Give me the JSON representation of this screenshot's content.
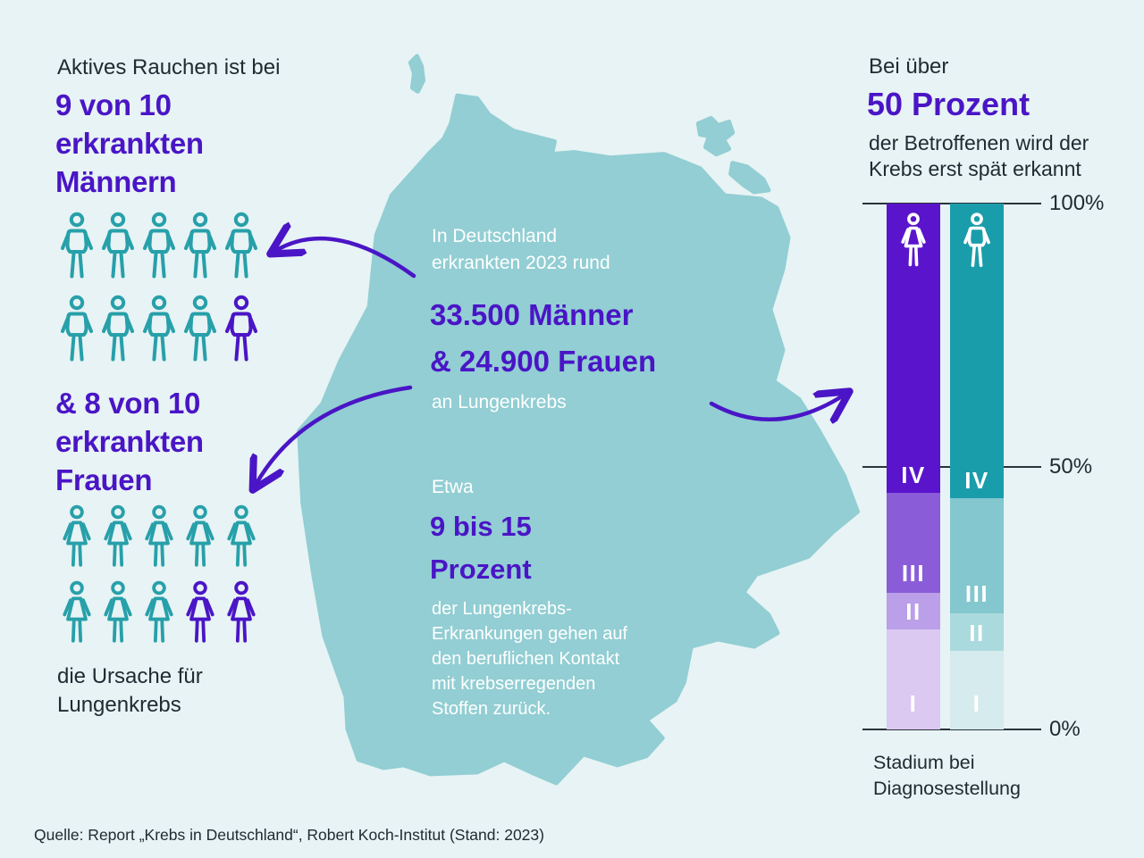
{
  "page": {
    "background": "#e7f3f4",
    "source": "Quelle: Report „Krebs in Deutschland“, Robert Koch-Institut (Stand: 2023)"
  },
  "left": {
    "intro": "Aktives Rauchen ist bei",
    "men_stat_lines": [
      "9 von 10",
      "erkrankten",
      "Männern"
    ],
    "women_stat_lines": [
      "& 8 von 10",
      "erkrankten",
      "Frauen"
    ],
    "caption_lines": [
      "die Ursache für",
      "Lungenkrebs"
    ],
    "men_icons": {
      "total": 10,
      "highlighted": 1,
      "icon": "male"
    },
    "women_icons": {
      "total": 10,
      "highlighted": 2,
      "icon": "female"
    },
    "icon_color": "#27a0aa",
    "highlight_color": "#4a15c6"
  },
  "map": {
    "fill": "#92ced3",
    "block1": {
      "intro_lines": [
        "In Deutschland",
        "erkrankten 2023 rund"
      ],
      "stat_lines": [
        "33.500 Männer",
        "& 24.900 Frauen"
      ],
      "outro": "an Lungenkrebs"
    },
    "block2": {
      "intro": "Etwa",
      "stat_lines": [
        "9 bis 15",
        "Prozent"
      ],
      "body_lines": [
        "der Lungenkrebs-",
        "Erkrankungen gehen auf",
        "den beruflichen Kontakt",
        "mit krebserregenden",
        "Stoffen zurück."
      ]
    }
  },
  "right": {
    "intro": "Bei über",
    "stat": "50 Prozent",
    "body_lines": [
      "der Betroffenen wird der",
      "Krebs erst spät erkannt"
    ],
    "axis_caption_lines": [
      "Stadium bei",
      "Diagnosestellung"
    ]
  },
  "chart_data": {
    "type": "bar",
    "variant": "stacked-100-percent",
    "title": "Stadium bei Diagnosestellung",
    "unit": "percent",
    "ylim": [
      0,
      100
    ],
    "yticks": [
      {
        "label": "100%",
        "value": 100
      },
      {
        "label": "50%",
        "value": 50
      },
      {
        "label": "0%",
        "value": 0
      }
    ],
    "stack_order_top_to_bottom": [
      "IV",
      "III",
      "II",
      "I"
    ],
    "series": [
      {
        "name": "Frauen",
        "icon": "female",
        "segments": {
          "IV": 55,
          "III": 19,
          "II": 7,
          "I": 19
        },
        "colors": {
          "IV": "#5a14cc",
          "III": "#8a5cd8",
          "II": "#bb9fe8",
          "I": "#dbc9f2"
        }
      },
      {
        "name": "Männer",
        "icon": "male",
        "segments": {
          "IV": 56,
          "III": 22,
          "II": 7,
          "I": 15
        },
        "colors": {
          "IV": "#1a9dab",
          "III": "#84c7ce",
          "II": "#abdade",
          "I": "#d6ebed"
        }
      }
    ]
  }
}
